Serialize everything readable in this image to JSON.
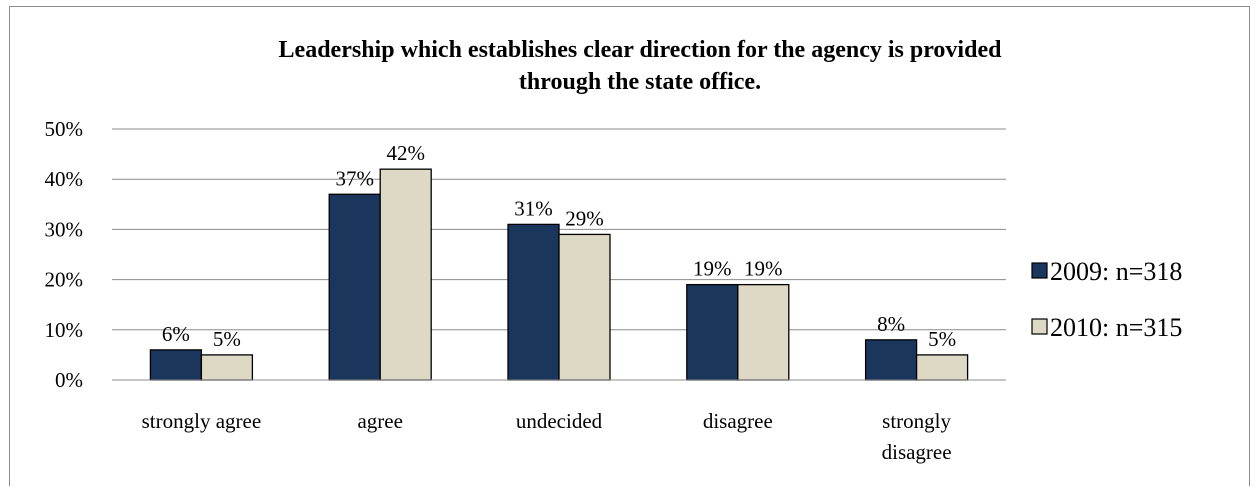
{
  "chart_data": {
    "type": "bar",
    "title": "Leadership which establishes clear direction for the agency is provided through the state office.",
    "title_lines": [
      "Leadership which establishes clear direction for the agency is provided",
      "through the state office."
    ],
    "categories": [
      "strongly agree",
      "agree",
      "undecided",
      "disagree",
      "strongly disagree"
    ],
    "category_lines": [
      [
        "strongly agree"
      ],
      [
        "agree"
      ],
      [
        "undecided"
      ],
      [
        "disagree"
      ],
      [
        "strongly",
        "disagree"
      ]
    ],
    "series": [
      {
        "name": "2009: n=318",
        "values": [
          6,
          37,
          31,
          19,
          8
        ],
        "labels": [
          "6%",
          "37%",
          "31%",
          "19%",
          "8%"
        ],
        "color": "#1b365d"
      },
      {
        "name": "2010: n=315",
        "values": [
          5,
          42,
          29,
          19,
          5
        ],
        "labels": [
          "5%",
          "42%",
          "29%",
          "19%",
          "5%"
        ],
        "color": "#ddd9c4"
      }
    ],
    "ylim": [
      0,
      50
    ],
    "yticks": [
      0,
      10,
      20,
      30,
      40,
      50
    ],
    "ytick_labels": [
      "0%",
      "10%",
      "20%",
      "30%",
      "40%",
      "50%"
    ],
    "xlabel": "",
    "ylabel": "",
    "grid": true,
    "legend_position": "right"
  }
}
